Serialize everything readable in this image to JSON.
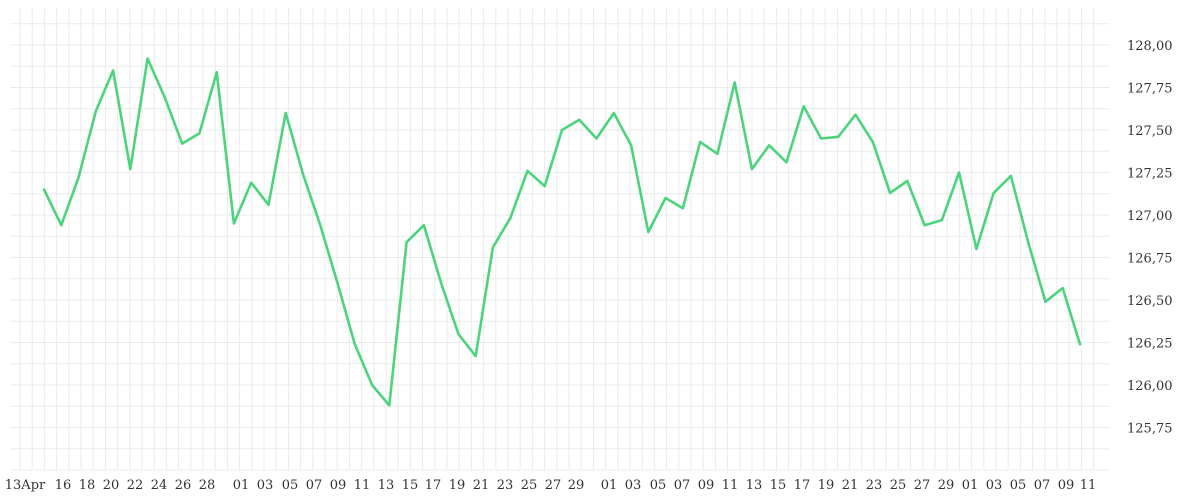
{
  "chart_data": {
    "type": "line",
    "title": "",
    "xlabel": "",
    "ylabel": "",
    "ylim": [
      125.5,
      128.2
    ],
    "y_ticks": [
      125.75,
      126.0,
      126.25,
      126.5,
      126.75,
      127.0,
      127.25,
      127.5,
      127.75,
      128.0
    ],
    "y_tick_labels": [
      "125,75",
      "126,00",
      "126,25",
      "126,50",
      "126,75",
      "127,00",
      "127,25",
      "127,50",
      "127,75",
      "128,00"
    ],
    "y_axis_position": "right",
    "grid": true,
    "line_color": "#4cd47c",
    "x_tick_labels": [
      "13Apr",
      "16",
      "18",
      "20",
      "22",
      "24",
      "26",
      "28",
      "01",
      "03",
      "05",
      "07",
      "09",
      "11",
      "13",
      "15",
      "17",
      "19",
      "21",
      "23",
      "25",
      "27",
      "29",
      "01",
      "03",
      "05",
      "07",
      "09",
      "11",
      "13",
      "15",
      "17",
      "19",
      "21",
      "23",
      "25",
      "27",
      "29",
      "01",
      "03",
      "05",
      "07",
      "09",
      "11"
    ],
    "series": [
      {
        "values": [
          127.15,
          126.94,
          127.22,
          127.61,
          127.85,
          127.27,
          127.92,
          127.69,
          127.42,
          127.48,
          127.84,
          126.95,
          127.19,
          127.06,
          127.6,
          127.24,
          126.94,
          126.6,
          126.24,
          126.0,
          125.88,
          126.84,
          126.94,
          126.6,
          126.3,
          126.17,
          126.81,
          126.98,
          127.26,
          127.17,
          127.5,
          127.56,
          127.45,
          127.6,
          127.41,
          126.9,
          127.1,
          127.04,
          127.43,
          127.36,
          127.78,
          127.27,
          127.41,
          127.31,
          127.64,
          127.45,
          127.46,
          127.59,
          127.43,
          127.13,
          127.2,
          126.94,
          126.97,
          127.25,
          126.8,
          127.13,
          127.23,
          126.84,
          126.49,
          126.57,
          126.24
        ]
      }
    ]
  }
}
